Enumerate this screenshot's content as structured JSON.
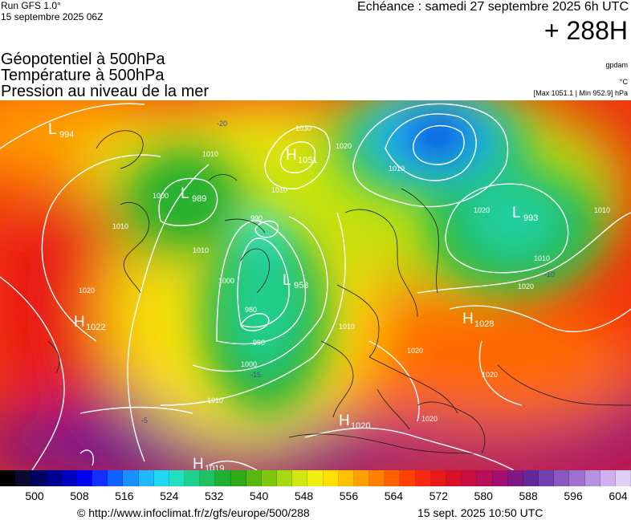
{
  "header": {
    "run_label": "Run GFS 1.0°",
    "run_date": "15 septembre 2025 06Z",
    "echeance": "Echéance : samedi 27 septembre 2025 6h UTC",
    "horizon": "+ 288H"
  },
  "titles": [
    "Géopotentiel à 500hPa",
    "Température à 500hPa",
    "Pression au niveau de la mer"
  ],
  "units": {
    "geopotential": "gpdam",
    "temperature": "°C",
    "pressure_range": "[Max 1051.1 | Min 952.9] hPa"
  },
  "map": {
    "pressure_centers": [
      {
        "type": "L",
        "value": "994"
      },
      {
        "type": "L",
        "value": "989"
      },
      {
        "type": "H",
        "value": "1051"
      },
      {
        "type": "L",
        "value": "953"
      },
      {
        "type": "L",
        "value": "993"
      },
      {
        "type": "H",
        "value": "1022"
      },
      {
        "type": "H",
        "value": "1028"
      },
      {
        "type": "H",
        "value": "1020"
      },
      {
        "type": "H",
        "value": "1019"
      }
    ],
    "isobar_labels": [
      "1010",
      "1030",
      "1020",
      "1010",
      "1000",
      "1010",
      "990",
      "1010",
      "1000",
      "980",
      "990",
      "1000",
      "1010",
      "1010",
      "1020",
      "1010",
      "1010",
      "1020",
      "1020",
      "1020",
      "1020",
      "1020",
      "1010"
    ],
    "temperature_labels": [
      "-20",
      "-15",
      "-10",
      "-5"
    ]
  },
  "colorbar": {
    "colors": [
      "#000000",
      "#0a0a30",
      "#000060",
      "#000090",
      "#0000c0",
      "#0000f0",
      "#1030ff",
      "#1060ff",
      "#1a90ff",
      "#20b8ff",
      "#20d8f0",
      "#20e0c0",
      "#20d090",
      "#20c060",
      "#20b030",
      "#30a818",
      "#58b810",
      "#80c810",
      "#a8d810",
      "#d0e810",
      "#f0f010",
      "#ffe000",
      "#ffc000",
      "#ffa000",
      "#ff8000",
      "#ff6000",
      "#ff4000",
      "#f82810",
      "#e81818",
      "#d81028",
      "#c81040",
      "#b81058",
      "#a01070",
      "#801888",
      "#602898",
      "#7040b0",
      "#8858c0",
      "#a070d0",
      "#b890e0",
      "#d0b0f0",
      "#e0d0f8"
    ],
    "labels": [
      "500",
      "508",
      "516",
      "524",
      "532",
      "540",
      "548",
      "556",
      "564",
      "572",
      "580",
      "588",
      "596",
      "604"
    ]
  },
  "footer": {
    "copyright": "© http://www.infoclimat.fr/z/gfs/europe/500/288",
    "timestamp": "15 sept. 2025 10:50 UTC"
  }
}
